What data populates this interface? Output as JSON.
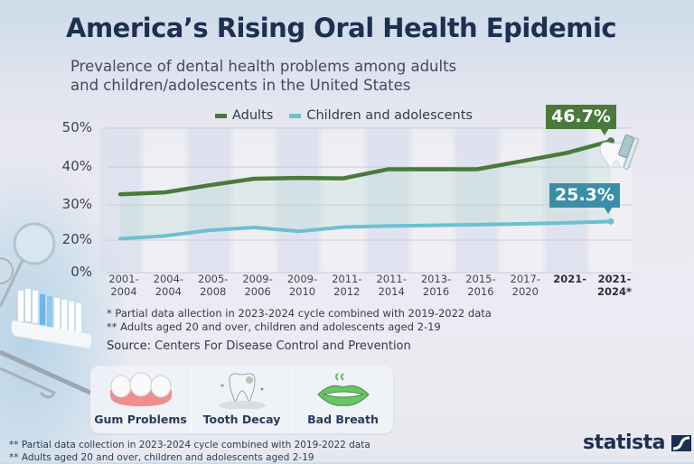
{
  "header": {
    "title": "America’s Rising Oral Health Epidemic",
    "subtitle_line1": "Prevalence of dental health problems among adults",
    "subtitle_line2": "and children/adolescents in the United States"
  },
  "colors": {
    "adults": "#4a7a3b",
    "children": "#6cc0d0",
    "adults_callout": "#4a7a3b",
    "children_callout": "#3a8ea6",
    "title": "#1d2f52"
  },
  "chart_data": {
    "type": "line",
    "title": "America’s Rising Oral Health Epidemic",
    "subtitle": "Prevalence of dental health problems among adults and children/adolescents in the United States",
    "xlabel": "",
    "ylabel": "",
    "yticks": [
      "50%",
      "40%",
      "30%",
      "20%",
      "0%"
    ],
    "ytick_values": [
      50,
      40,
      30,
      20,
      0
    ],
    "ylim": [
      0,
      50
    ],
    "grid": true,
    "legend_position": "top",
    "categories": [
      "2001-2004",
      "2004-2004",
      "2005-2008",
      "2009-2006",
      "2009-2010",
      "2011-2012",
      "2011-2014",
      "2013-2016",
      "2015-2016",
      "2017-2020",
      "2021-",
      "2021-2024*"
    ],
    "category_labels": [
      [
        "2001-",
        "2004"
      ],
      [
        "2004-",
        "2004"
      ],
      [
        "2005-",
        "2008"
      ],
      [
        "2009-",
        "2006"
      ],
      [
        "2009-",
        "2010"
      ],
      [
        "2011-",
        "2012"
      ],
      [
        "2011-",
        "2014"
      ],
      [
        "2013-",
        "2016"
      ],
      [
        "2015-",
        "2016"
      ],
      [
        "2017-",
        "2020"
      ],
      [
        "2021-",
        ""
      ],
      [
        "2021-2024*",
        ""
      ]
    ],
    "bold_categories": [
      10,
      11
    ],
    "series": [
      {
        "name": "Adults",
        "values": [
          32.8,
          33.3,
          35.2,
          36.9,
          37.1,
          37.0,
          39.4,
          39.4,
          39.4,
          41.5,
          43.6,
          46.7
        ],
        "end_label": "46.7%"
      },
      {
        "name": "Children and adolescents",
        "values": [
          20.4,
          21.2,
          22.8,
          23.6,
          22.5,
          23.7,
          24.0,
          24.2,
          24.4,
          24.6,
          24.9,
          25.3
        ],
        "end_label": "25.3%"
      }
    ]
  },
  "notes": {
    "note1": "* Partial data allection in 2023-2024 cycle combined with 2019-2022 data",
    "note2": "** Adults aged 20 and over, children and adolescents aged 2-19",
    "source_label": "Source:",
    "source_text": " Centers For Disease Control and Prevention"
  },
  "problems": [
    {
      "label": "Gum Problems",
      "icon": "gums-icon"
    },
    {
      "label": "Tooth Decay",
      "icon": "decayed-tooth-icon"
    },
    {
      "label": "Bad Breath",
      "icon": "lips-icon"
    }
  ],
  "footer": {
    "note1": "** Partial data collection in 2023-2024 cycle combined with 2019-2022 data",
    "note2": "** Adults aged 20 and over, children and adolescents aged 2-19"
  },
  "brand": {
    "name": "statista"
  }
}
